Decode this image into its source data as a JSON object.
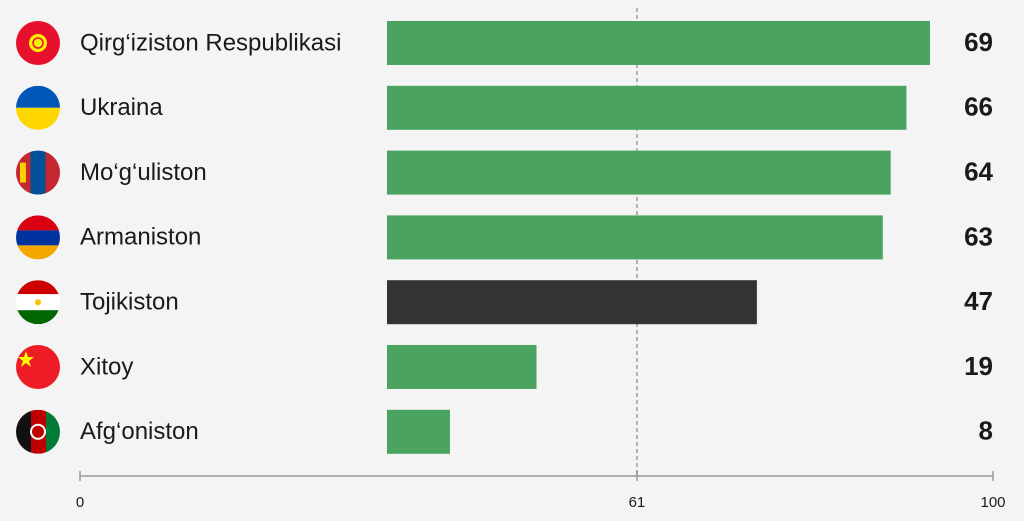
{
  "chart_data": {
    "type": "bar",
    "orientation": "horizontal",
    "categories": [
      "Qirg‘iziston Respublikasi",
      "Ukraina",
      "Mo‘g‘uliston",
      "Armaniston",
      "Tojikiston",
      "Xitoy",
      "Afg‘oniston"
    ],
    "values": [
      69,
      66,
      64,
      63,
      47,
      19,
      8
    ],
    "colors": [
      "#4aa35f",
      "#4aa35f",
      "#4aa35f",
      "#4aa35f",
      "#333333",
      "#4aa35f",
      "#4aa35f"
    ],
    "xlim": [
      0,
      100
    ],
    "xticks": [
      0,
      61,
      100
    ]
  }
}
